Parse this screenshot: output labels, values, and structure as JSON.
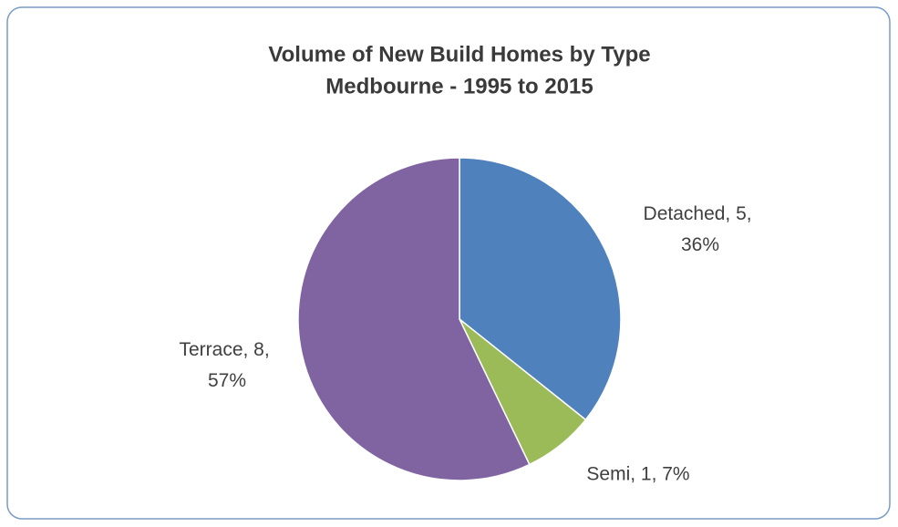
{
  "chart_data": {
    "type": "pie",
    "title": "Volume of New Build Homes by Type",
    "subtitle": "Medbourne - 1995 to 2015",
    "categories": [
      "Detached",
      "Semi",
      "Terrace"
    ],
    "values": [
      5,
      1,
      8
    ],
    "value_labels": [
      "Detached, 5, 36%",
      "Semi, 1, 7%",
      "Terrace, 8, 57%"
    ],
    "colors": [
      "#4f81bd",
      "#9bbb59",
      "#8064a2"
    ]
  }
}
